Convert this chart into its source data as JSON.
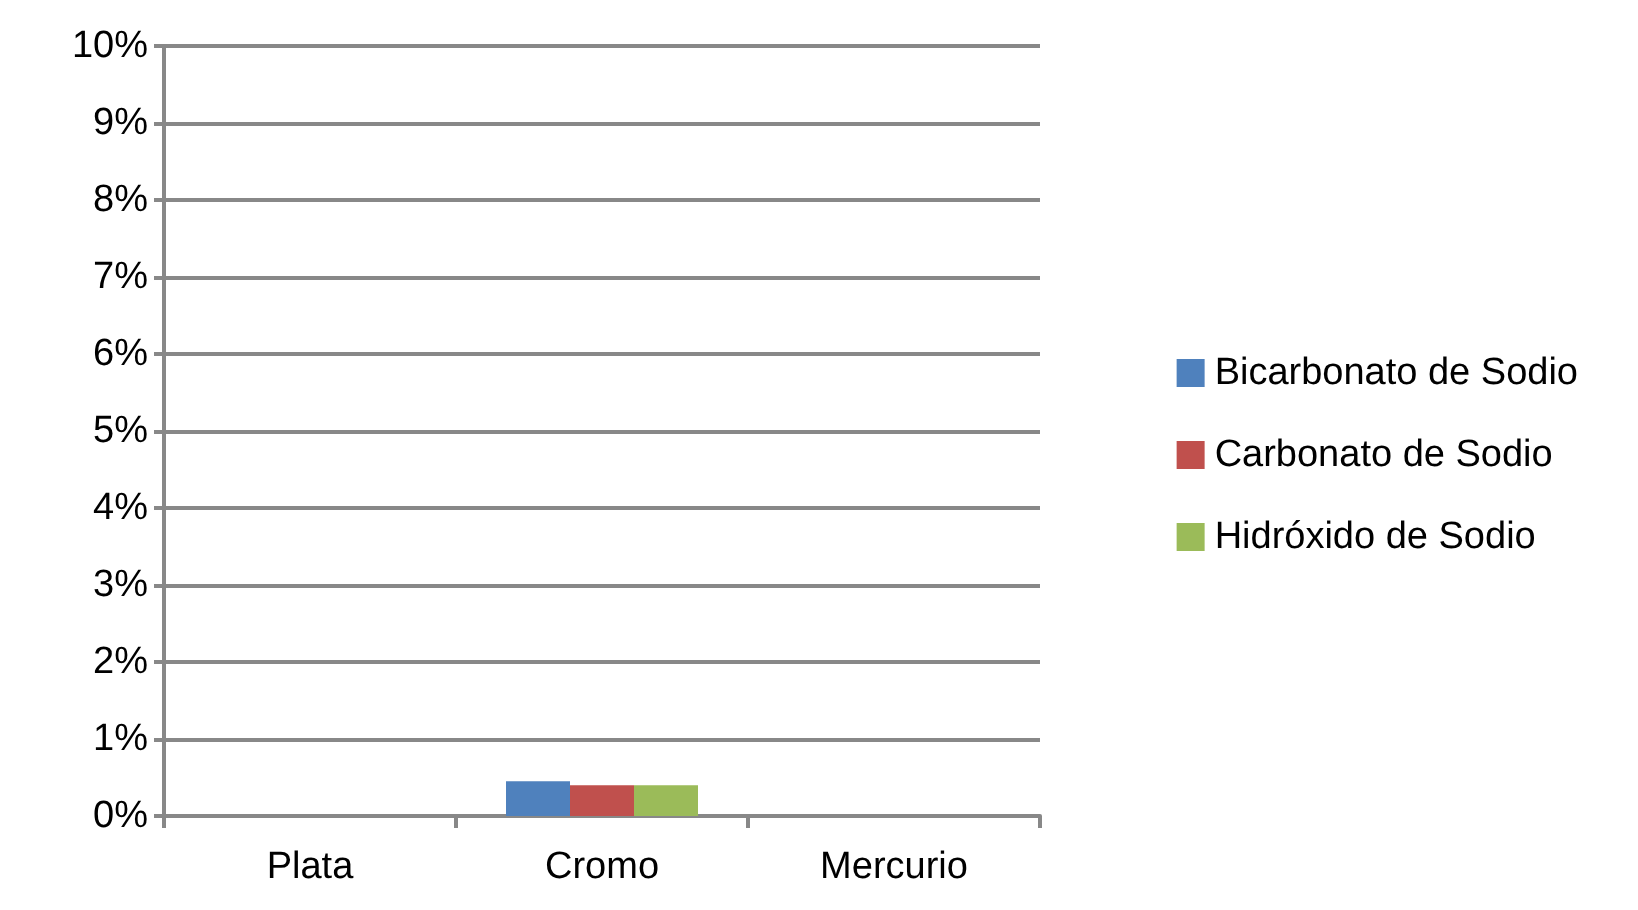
{
  "chart_data": {
    "type": "bar",
    "categories": [
      "Plata",
      "Cromo",
      "Mercurio"
    ],
    "series": [
      {
        "name": "Bicarbonato de Sodio",
        "color": "#4f81bd",
        "values": [
          0,
          0.45,
          0
        ]
      },
      {
        "name": "Carbonato de Sodio",
        "color": "#c0504d",
        "values": [
          0,
          0.4,
          0
        ]
      },
      {
        "name": "Hidróxido de Sodio",
        "color": "#9bbb59",
        "values": [
          0,
          0.4,
          0
        ]
      }
    ],
    "ylim": [
      0,
      10
    ],
    "yticks": [
      {
        "value": 0,
        "label": "0%"
      },
      {
        "value": 1,
        "label": "1%"
      },
      {
        "value": 2,
        "label": "2%"
      },
      {
        "value": 3,
        "label": "3%"
      },
      {
        "value": 4,
        "label": "4%"
      },
      {
        "value": 5,
        "label": "5%"
      },
      {
        "value": 6,
        "label": "6%"
      },
      {
        "value": 7,
        "label": "7%"
      },
      {
        "value": 8,
        "label": "8%"
      },
      {
        "value": 9,
        "label": "9%"
      },
      {
        "value": 10,
        "label": "10%"
      }
    ],
    "grid": true,
    "legend": "right"
  }
}
